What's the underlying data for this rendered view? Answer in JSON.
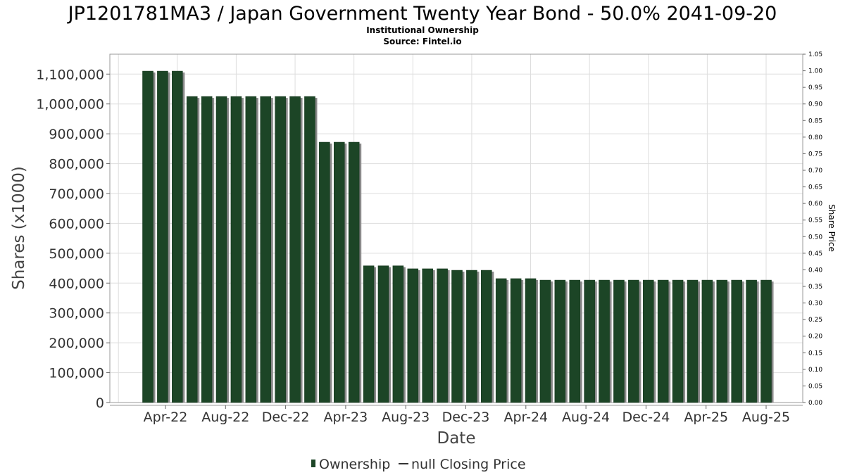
{
  "chart_data": {
    "type": "bar",
    "title": "JP1201781MA3 / Japan Government Twenty Year Bond - 50.0% 2041-09-20",
    "subtitles": [
      "Institutional Ownership",
      "Source: Fintel.io"
    ],
    "xlabel": "Date",
    "ylabel": "Shares (x1000)",
    "y2label": "Share Price",
    "ylim": [
      0,
      1166667
    ],
    "y_ticks": [
      0,
      100000,
      200000,
      300000,
      400000,
      500000,
      600000,
      700000,
      800000,
      900000,
      1000000,
      1100000
    ],
    "y_tick_labels": [
      "0",
      "100,000",
      "200,000",
      "300,000",
      "400,000",
      "500,000",
      "600,000",
      "700,000",
      "800,000",
      "900,000",
      "1,000,000",
      "1,100,000"
    ],
    "y2lim": [
      0,
      1.05
    ],
    "y2_ticks": [
      0,
      0.05,
      0.1,
      0.15,
      0.2,
      0.25,
      0.3,
      0.35,
      0.4,
      0.45,
      0.5,
      0.55,
      0.6,
      0.65,
      0.7,
      0.75,
      0.8,
      0.85,
      0.9,
      0.95,
      1.0,
      1.05
    ],
    "y2_tick_labels": [
      "0.00",
      "0.05",
      "0.10",
      "0.15",
      "0.20",
      "0.25",
      "0.30",
      "0.35",
      "0.40",
      "0.45",
      "0.50",
      "0.55",
      "0.60",
      "0.65",
      "0.70",
      "0.75",
      "0.80",
      "0.85",
      "0.90",
      "0.95",
      "1.00",
      "1.05"
    ],
    "x_tick_labels": [
      "Apr-22",
      "Aug-22",
      "Dec-22",
      "Apr-23",
      "Aug-23",
      "Dec-23",
      "Apr-24",
      "Aug-24",
      "Dec-24",
      "Apr-25",
      "Aug-25"
    ],
    "grid": true,
    "legend": {
      "placement": "bottom",
      "entries": [
        {
          "label": "Ownership",
          "type": "bar",
          "color": "#1c4526"
        },
        {
          "label": "null Closing Price",
          "type": "line",
          "color": "#333333"
        }
      ]
    },
    "series": [
      {
        "name": "Ownership",
        "color": "#1c4526",
        "values": [
          1110000,
          1110000,
          1110000,
          1025000,
          1025000,
          1025000,
          1025000,
          1025000,
          1025000,
          1025000,
          1025000,
          1025000,
          872000,
          872000,
          872000,
          458000,
          458000,
          458000,
          448000,
          448000,
          448000,
          443000,
          443000,
          443000,
          415000,
          415000,
          415000,
          410000,
          410000,
          410000,
          410000,
          410000,
          410000,
          410000,
          410000,
          410000,
          410000,
          410000,
          410000,
          410000,
          410000,
          410000,
          410000
        ]
      }
    ]
  }
}
